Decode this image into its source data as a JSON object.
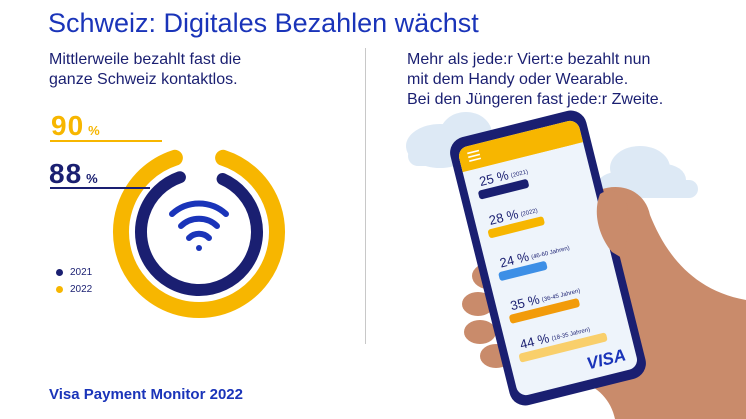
{
  "title": "Schweiz: Digitales Bezahlen wächst",
  "left_subtitle": [
    "Mittlerweile bezahlt fast die",
    "ganze Schweiz kontaktlos."
  ],
  "right_subtitle": [
    "Mehr als jede:r Viert:e bezahlt nun",
    "mit dem Handy oder Wearable.",
    "Bei den Jüngeren fast jede:r Zweite."
  ],
  "footer": "Visa Payment Monitor 2022",
  "brand": "VISA",
  "colors": {
    "title_blue": "#1a34b9",
    "navy": "#1a1f71",
    "gold": "#f7b600",
    "light_blue": "#3d8fe6",
    "orange": "#f29b0a",
    "light_gold": "#f9cf6b",
    "cloud": "#dde9f5",
    "skin": "#c98b6b",
    "phone_screen": "#eef4fb"
  },
  "chart_data": [
    {
      "type": "donut",
      "unit": "%",
      "series": [
        {
          "name": "2021",
          "value": 88,
          "value_label": "88",
          "color": "#1a1f71"
        },
        {
          "name": "2022",
          "value": 90,
          "value_label": "90",
          "color": "#f7b600"
        }
      ],
      "legend": "bottom-left",
      "icon": "contactless-wave-icon"
    },
    {
      "type": "bar",
      "orientation": "horizontal",
      "unit": "%",
      "xlim": [
        0,
        44
      ],
      "bars": [
        {
          "value": 25,
          "label": "25 %",
          "tag": "(2021)",
          "color": "#1a1f71"
        },
        {
          "value": 28,
          "label": "28 %",
          "tag": "(2022)",
          "color": "#f7b600"
        },
        {
          "value": 24,
          "label": "24 %",
          "tag": "(46-60 Jahren)",
          "color": "#3d8fe6"
        },
        {
          "value": 35,
          "label": "35 %",
          "tag": "(36-45 Jahren)",
          "color": "#f29b0a"
        },
        {
          "value": 44,
          "label": "44 %",
          "tag": "(18-35 Jahren)",
          "color": "#f9cf6b"
        }
      ]
    }
  ]
}
